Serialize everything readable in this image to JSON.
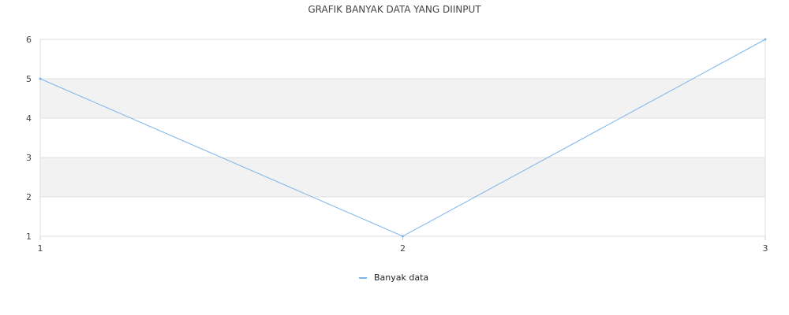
{
  "chart_data": {
    "type": "line",
    "title": "GRAFIK BANYAK DATA YANG DIINPUT",
    "x": [
      1,
      2,
      3
    ],
    "x_ticks": [
      "1",
      "2",
      "3"
    ],
    "xlim": [
      1,
      3
    ],
    "ylim": [
      1,
      6
    ],
    "y_ticks": [
      "1",
      "2",
      "3",
      "4",
      "5",
      "6"
    ],
    "series": [
      {
        "name": "Banyak data",
        "values": [
          5,
          1,
          6
        ],
        "color": "#7cb5ec"
      }
    ],
    "grid": true,
    "band_color": "#f2f2f2",
    "grid_color": "#e0e0e0",
    "legend_position": "bottom-center"
  }
}
